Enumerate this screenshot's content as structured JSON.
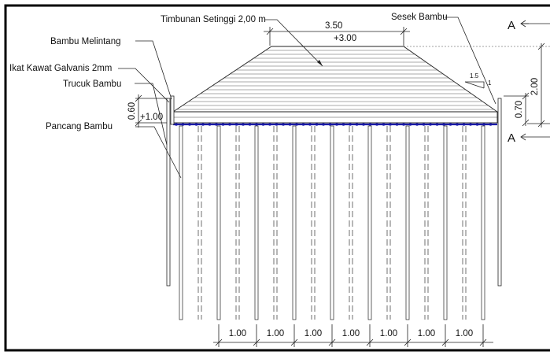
{
  "labels": {
    "timbunan": "Timbunan Setinggi 2,00 m",
    "sesek": "Sesek Bambu",
    "bambu_melintang": "Bambu Melintang",
    "ikat_kawat": "Ikat Kawat Galvanis 2mm",
    "trucuk": "Trucuk Bambu",
    "pancang": "Pancang Bambu"
  },
  "dimensions": {
    "top_width": "3.50",
    "top_level": "+3.00",
    "base_level": "+1.00",
    "height_total": "2.00",
    "height_trucuk": "0.70",
    "height_left": "0.60",
    "slope_run": "1.5",
    "slope_rise": "1",
    "spacings": [
      "1.00",
      "1.00",
      "1.00",
      "1.00",
      "1.00",
      "1.00",
      "1.00"
    ]
  },
  "section": {
    "top_marker": "A",
    "bottom_marker": "A"
  }
}
